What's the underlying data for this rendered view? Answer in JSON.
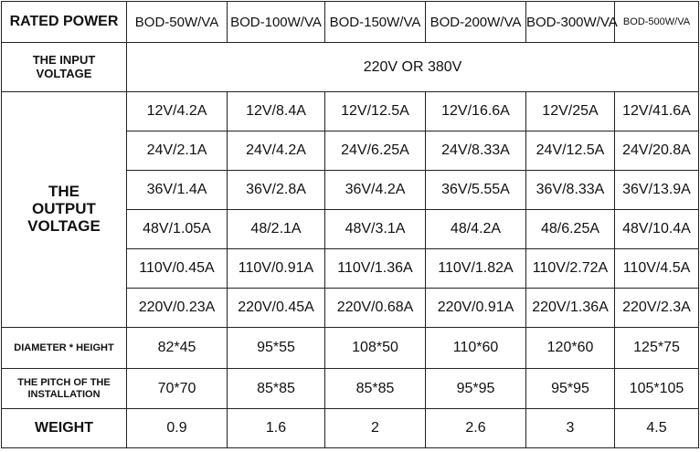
{
  "header": {
    "label": "RATED POWER",
    "models": [
      "BOD-50W/VA",
      "BOD-100W/VA",
      "BOD-150W/VA",
      "BOD-200W/VA",
      "BOD-300W/VA",
      "BOD-500W/VA"
    ]
  },
  "input_voltage": {
    "label": "THE INPUT VOLTAGE",
    "value": "220V OR 380V"
  },
  "output_voltage": {
    "label": "THE OUTPUT VOLTAGE",
    "rows": [
      [
        "12V/4.2A",
        "12V/8.4A",
        "12V/12.5A",
        "12V/16.6A",
        "12V/25A",
        "12V/41.6A"
      ],
      [
        "24V/2.1A",
        "24V/4.2A",
        "24V/6.25A",
        "24V/8.33A",
        "24V/12.5A",
        "24V/20.8A"
      ],
      [
        "36V/1.4A",
        "36V/2.8A",
        "36V/4.2A",
        "36V/5.55A",
        "36V/8.33A",
        "36V/13.9A"
      ],
      [
        "48V/1.05A",
        "48/2.1A",
        "48V/3.1A",
        "48/4.2A",
        "48/6.25A",
        "48V/10.4A"
      ],
      [
        "110V/0.45A",
        "110V/0.91A",
        "110V/1.36A",
        "110V/1.82A",
        "110V/2.72A",
        "110V/4.5A"
      ],
      [
        "220V/0.23A",
        "220V/0.45A",
        "220V/0.68A",
        "220V/0.91A",
        "220V/1.36A",
        "220V/2.3A"
      ]
    ]
  },
  "diameter_height": {
    "label": "DIAMETER * HEIGHT",
    "values": [
      "82*45",
      "95*55",
      "108*50",
      "110*60",
      "120*60",
      "125*75"
    ]
  },
  "pitch": {
    "label": "THE PITCH OF THE INSTALLATION",
    "values": [
      "70*70",
      "85*85",
      "85*85",
      "95*95",
      "95*95",
      "105*105"
    ]
  },
  "weight": {
    "label": "WEIGHT",
    "values": [
      "0.9",
      "1.6",
      "2",
      "2.6",
      "3",
      "4.5"
    ]
  }
}
